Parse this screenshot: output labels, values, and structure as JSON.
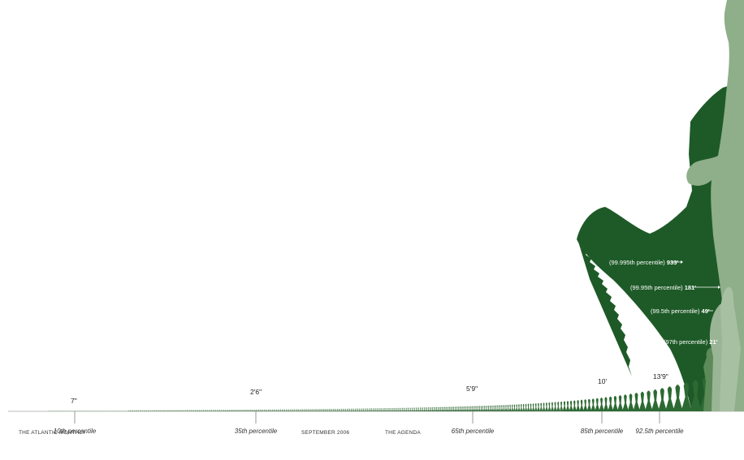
{
  "colors": {
    "dark_green": "#1e5a27",
    "light_green": "#8fae8a",
    "mid_green": "#4f7f4c",
    "axis": "#bbbbbb",
    "text": "#222222",
    "annotation_text": "#ffffff"
  },
  "markers": [
    {
      "height_label": "7\"",
      "percentile_label": "10th percentile"
    },
    {
      "height_label": "2'6\"",
      "percentile_label": "35th percentile"
    },
    {
      "height_label": "5'9\"",
      "percentile_label": "65th percentile"
    },
    {
      "height_label": "10'",
      "percentile_label": "85th percentile"
    },
    {
      "height_label": "13'9\"",
      "percentile_label": "92.5th percentile"
    }
  ],
  "callouts": [
    {
      "percentile": "(99.995th percentile)",
      "height": "933'"
    },
    {
      "percentile": "(99.95th percentile)",
      "height": "181'"
    },
    {
      "percentile": "(99.5th percentile)",
      "height": "49'"
    },
    {
      "percentile": "(97th percentile)",
      "height": "21'"
    }
  ],
  "footer": {
    "publication": "THE ATLANTIC MONTHLY",
    "date": "SEPTEMBER 2006",
    "section": "THE AGENDA"
  }
}
